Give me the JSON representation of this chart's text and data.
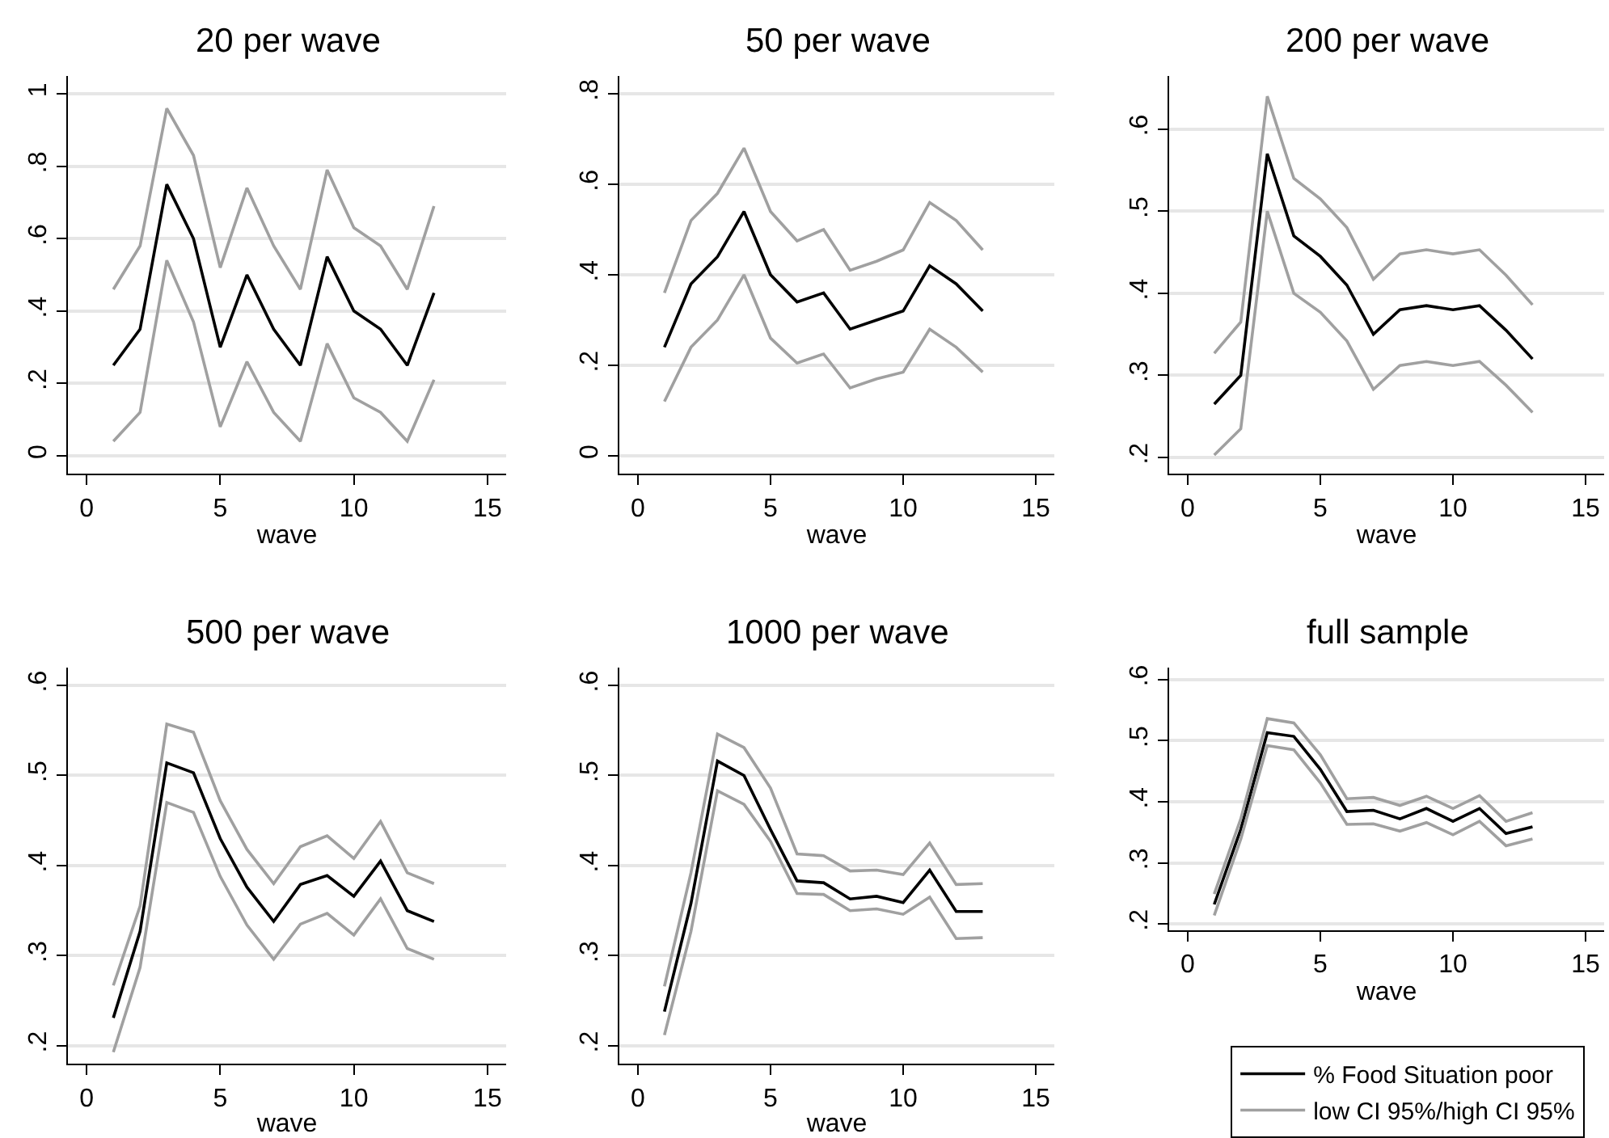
{
  "chart_data": [
    {
      "type": "line",
      "title": "20 per wave",
      "xlabel": "wave",
      "x": [
        1,
        2,
        3,
        4,
        5,
        6,
        7,
        8,
        9,
        10,
        11,
        12,
        13
      ],
      "xlim": [
        -0.7,
        15.7
      ],
      "xticks": [
        0,
        5,
        10,
        15
      ],
      "ylim": [
        -0.05,
        1.05
      ],
      "yticks": [
        0,
        {
          "value": 0.2,
          "label": ".2"
        },
        {
          "value": 0.4,
          "label": ".4"
        },
        {
          "value": 0.6,
          "label": ".6"
        },
        {
          "value": 0.8,
          "label": ".8"
        },
        1
      ],
      "grid": "y",
      "line_style": "solid",
      "marker": "none",
      "series": [
        {
          "color": "#000000",
          "values": [
            0.25,
            0.35,
            0.75,
            0.6,
            0.3,
            0.5,
            0.35,
            0.25,
            0.55,
            0.4,
            0.35,
            0.25,
            0.45
          ]
        },
        {
          "color": "#a0a0a0",
          "values": [
            0.04,
            0.12,
            0.54,
            0.37,
            0.08,
            0.26,
            0.12,
            0.04,
            0.31,
            0.16,
            0.12,
            0.04,
            0.21
          ]
        },
        {
          "color": "#a0a0a0",
          "values": [
            0.46,
            0.58,
            0.96,
            0.83,
            0.52,
            0.74,
            0.58,
            0.46,
            0.79,
            0.63,
            0.58,
            0.46,
            0.69
          ]
        }
      ]
    },
    {
      "type": "line",
      "title": "50 per wave",
      "xlabel": "wave",
      "x": [
        1,
        2,
        3,
        4,
        5,
        6,
        7,
        8,
        9,
        10,
        11,
        12,
        13
      ],
      "xlim": [
        -0.7,
        15.7
      ],
      "xticks": [
        0,
        5,
        10,
        15
      ],
      "ylim": [
        -0.04,
        0.84
      ],
      "yticks": [
        0,
        {
          "value": 0.2,
          "label": ".2"
        },
        {
          "value": 0.4,
          "label": ".4"
        },
        {
          "value": 0.6,
          "label": ".6"
        },
        {
          "value": 0.8,
          "label": ".8"
        }
      ],
      "grid": "y",
      "line_style": "solid",
      "marker": "none",
      "series": [
        {
          "color": "#000000",
          "values": [
            0.24,
            0.38,
            0.44,
            0.54,
            0.4,
            0.34,
            0.36,
            0.28,
            0.3,
            0.32,
            0.42,
            0.38,
            0.32
          ]
        },
        {
          "color": "#a0a0a0",
          "values": [
            0.12,
            0.24,
            0.3,
            0.4,
            0.26,
            0.205,
            0.225,
            0.15,
            0.17,
            0.185,
            0.28,
            0.24,
            0.185
          ]
        },
        {
          "color": "#a0a0a0",
          "values": [
            0.36,
            0.52,
            0.58,
            0.68,
            0.54,
            0.475,
            0.5,
            0.41,
            0.43,
            0.455,
            0.56,
            0.52,
            0.455
          ]
        }
      ]
    },
    {
      "type": "line",
      "title": "200 per wave",
      "xlabel": "wave",
      "x": [
        1,
        2,
        3,
        4,
        5,
        6,
        7,
        8,
        9,
        10,
        11,
        12,
        13
      ],
      "xlim": [
        -0.7,
        15.7
      ],
      "xticks": [
        0,
        5,
        10,
        15
      ],
      "ylim": [
        0.18,
        0.665
      ],
      "yticks": [
        {
          "value": 0.2,
          "label": ".2"
        },
        {
          "value": 0.3,
          "label": ".3"
        },
        {
          "value": 0.4,
          "label": ".4"
        },
        {
          "value": 0.5,
          "label": ".5"
        },
        {
          "value": 0.6,
          "label": ".6"
        }
      ],
      "grid": "y",
      "line_style": "solid",
      "marker": "none",
      "series": [
        {
          "color": "#000000",
          "values": [
            0.265,
            0.3,
            0.57,
            0.47,
            0.445,
            0.41,
            0.35,
            0.38,
            0.385,
            0.38,
            0.385,
            0.355,
            0.32
          ]
        },
        {
          "color": "#a0a0a0",
          "values": [
            0.203,
            0.235,
            0.5,
            0.4,
            0.377,
            0.342,
            0.283,
            0.312,
            0.317,
            0.312,
            0.317,
            0.288,
            0.255
          ]
        },
        {
          "color": "#a0a0a0",
          "values": [
            0.327,
            0.365,
            0.64,
            0.54,
            0.515,
            0.48,
            0.417,
            0.448,
            0.453,
            0.448,
            0.453,
            0.422,
            0.386
          ]
        }
      ]
    },
    {
      "type": "line",
      "title": "500 per wave",
      "xlabel": "wave",
      "x": [
        1,
        2,
        3,
        4,
        5,
        6,
        7,
        8,
        9,
        10,
        11,
        12,
        13
      ],
      "xlim": [
        -0.7,
        15.7
      ],
      "xticks": [
        0,
        5,
        10,
        15
      ],
      "ylim": [
        0.18,
        0.62
      ],
      "yticks": [
        {
          "value": 0.2,
          "label": ".2"
        },
        {
          "value": 0.3,
          "label": ".3"
        },
        {
          "value": 0.4,
          "label": ".4"
        },
        {
          "value": 0.5,
          "label": ".5"
        },
        {
          "value": 0.6,
          "label": ".6"
        }
      ],
      "grid": "y",
      "line_style": "solid",
      "marker": "none",
      "series": [
        {
          "color": "#000000",
          "values": [
            0.231,
            0.327,
            0.514,
            0.503,
            0.43,
            0.376,
            0.338,
            0.379,
            0.389,
            0.366,
            0.405,
            0.35,
            0.338
          ]
        },
        {
          "color": "#a0a0a0",
          "values": [
            0.193,
            0.287,
            0.47,
            0.459,
            0.388,
            0.334,
            0.296,
            0.335,
            0.347,
            0.323,
            0.363,
            0.308,
            0.296
          ]
        },
        {
          "color": "#a0a0a0",
          "values": [
            0.267,
            0.355,
            0.557,
            0.548,
            0.472,
            0.418,
            0.38,
            0.421,
            0.433,
            0.408,
            0.449,
            0.392,
            0.38
          ]
        }
      ]
    },
    {
      "type": "line",
      "title": "1000 per wave",
      "xlabel": "wave",
      "x": [
        1,
        2,
        3,
        4,
        5,
        6,
        7,
        8,
        9,
        10,
        11,
        12,
        13
      ],
      "xlim": [
        -0.7,
        15.7
      ],
      "xticks": [
        0,
        5,
        10,
        15
      ],
      "ylim": [
        0.18,
        0.62
      ],
      "yticks": [
        {
          "value": 0.2,
          "label": ".2"
        },
        {
          "value": 0.3,
          "label": ".3"
        },
        {
          "value": 0.4,
          "label": ".4"
        },
        {
          "value": 0.5,
          "label": ".5"
        },
        {
          "value": 0.6,
          "label": ".6"
        }
      ],
      "grid": "y",
      "line_style": "solid",
      "marker": "none",
      "series": [
        {
          "color": "#000000",
          "values": [
            0.238,
            0.358,
            0.516,
            0.5,
            0.44,
            0.383,
            0.381,
            0.363,
            0.366,
            0.359,
            0.395,
            0.349,
            0.349
          ]
        },
        {
          "color": "#a0a0a0",
          "values": [
            0.212,
            0.327,
            0.483,
            0.468,
            0.427,
            0.369,
            0.368,
            0.35,
            0.352,
            0.346,
            0.365,
            0.319,
            0.32
          ]
        },
        {
          "color": "#a0a0a0",
          "values": [
            0.266,
            0.392,
            0.546,
            0.531,
            0.486,
            0.413,
            0.411,
            0.394,
            0.395,
            0.39,
            0.425,
            0.379,
            0.38
          ]
        }
      ]
    },
    {
      "type": "line",
      "title": "full sample",
      "xlabel": "wave",
      "x": [
        1,
        2,
        3,
        4,
        5,
        6,
        7,
        8,
        9,
        10,
        11,
        12,
        13
      ],
      "xlim": [
        -0.7,
        15.7
      ],
      "xticks": [
        0,
        5,
        10,
        15
      ],
      "ylim": [
        0.19,
        0.62
      ],
      "yticks": [
        {
          "value": 0.2,
          "label": ".2"
        },
        {
          "value": 0.3,
          "label": ".3"
        },
        {
          "value": 0.4,
          "label": ".4"
        },
        {
          "value": 0.5,
          "label": ".5"
        },
        {
          "value": 0.6,
          "label": ".6"
        }
      ],
      "grid": "y",
      "line_style": "solid",
      "marker": "none",
      "legend": "bottom",
      "series": [
        {
          "name": "% Food Situation poor",
          "color": "#000000",
          "values": [
            0.232,
            0.355,
            0.513,
            0.507,
            0.453,
            0.384,
            0.386,
            0.372,
            0.389,
            0.368,
            0.389,
            0.348,
            0.359
          ]
        },
        {
          "name": "low CI 95%/high CI 95%",
          "color": "#a0a0a0",
          "values": [
            0.214,
            0.339,
            0.492,
            0.485,
            0.431,
            0.363,
            0.364,
            0.352,
            0.366,
            0.346,
            0.368,
            0.328,
            0.339
          ]
        },
        {
          "color": "#a0a0a0",
          "values": [
            0.249,
            0.372,
            0.536,
            0.529,
            0.477,
            0.405,
            0.407,
            0.394,
            0.409,
            0.389,
            0.41,
            0.368,
            0.382
          ]
        }
      ]
    }
  ]
}
